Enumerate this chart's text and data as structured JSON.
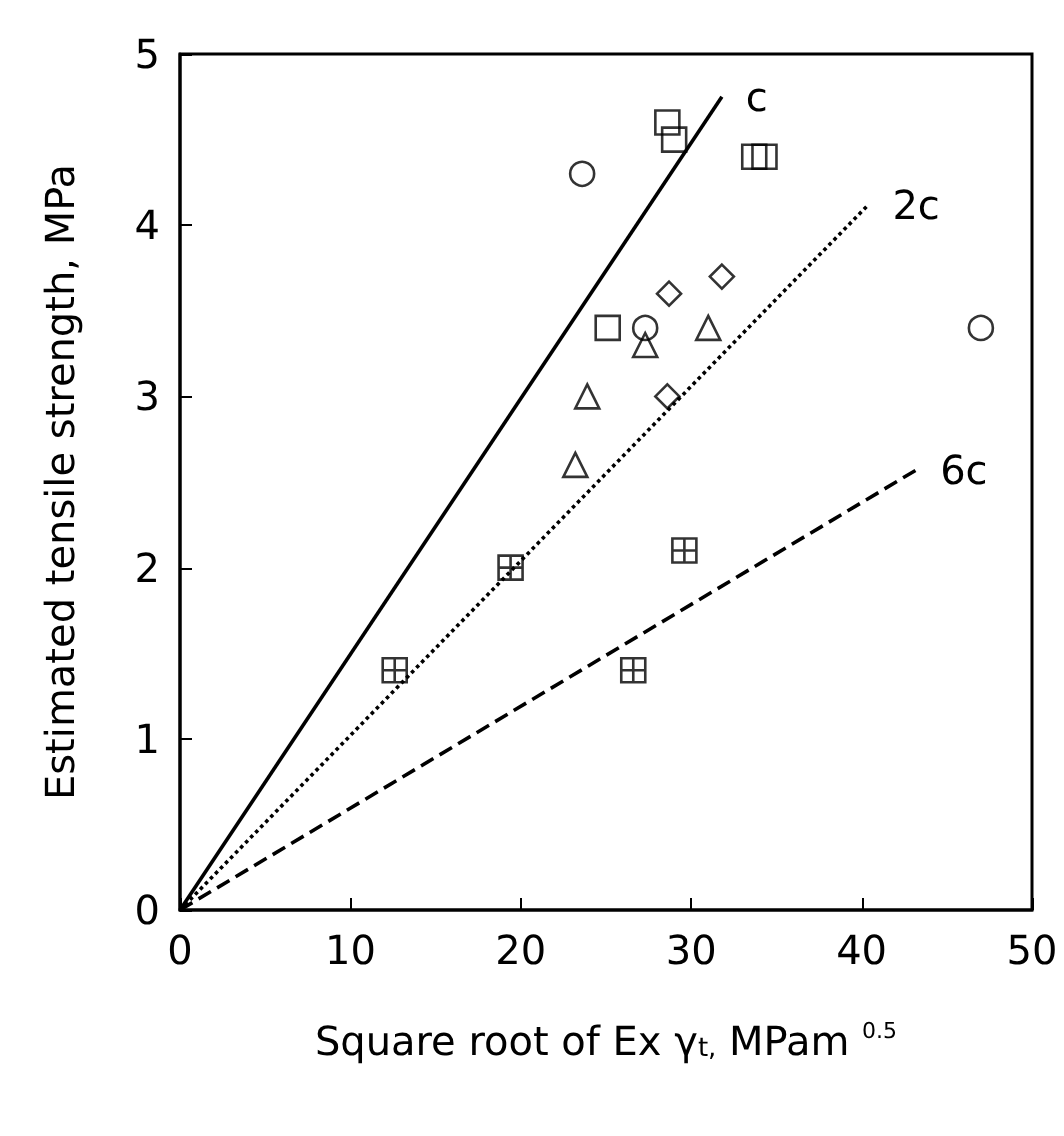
{
  "chart_data": {
    "type": "scatter",
    "xlabel": "Square root of Ex γ$_{t,}$ MPam $^{0.5}$",
    "ylabel": "Estimated tensile strength, MPa",
    "xlim": [
      0,
      50
    ],
    "xticks": [
      0,
      10,
      20,
      30,
      40,
      50
    ],
    "ylim": [
      0,
      5
    ],
    "yticks": [
      0,
      1,
      2,
      3,
      4,
      5
    ],
    "grid": false,
    "series": [
      {
        "marker": "circle",
        "color": "#000000",
        "x": [
          23.6,
          27.3,
          47
        ],
        "values": [
          4.3,
          3.4,
          3.4
        ]
      },
      {
        "marker": "square",
        "color": "#000000",
        "x": [
          28.6,
          29,
          33.7,
          34.3,
          25.1
        ],
        "values": [
          4.6,
          4.5,
          4.4,
          4.4,
          3.4
        ]
      },
      {
        "marker": "triangle",
        "color": "#000000",
        "x": [
          27.3,
          23.9,
          23.2,
          31
        ],
        "values": [
          3.3,
          3,
          2.6,
          3.4
        ]
      },
      {
        "marker": "diamond",
        "color": "#000000",
        "x": [
          28.7,
          31.8,
          28.6
        ],
        "values": [
          3.6,
          3.7,
          3
        ]
      },
      {
        "marker": "cross",
        "color": "#000000",
        "x": [
          12.6,
          19.4,
          29.6,
          26.6
        ],
        "values": [
          1.4,
          2,
          2.1,
          1.4
        ]
      },
      {
        "type": "line",
        "name": "c",
        "line_style": "solid",
        "color": "#000000",
        "x": [
          0,
          31.8
        ],
        "values": [
          0,
          4.75
        ]
      },
      {
        "type": "line",
        "name": "2c",
        "line_style": "dotted",
        "color": "#000000",
        "x": [
          0,
          40.4
        ],
        "values": [
          0,
          4.12
        ]
      },
      {
        "type": "line",
        "name": "6c",
        "line_style": "dashed",
        "color": "#000000",
        "x": [
          0,
          43.2
        ],
        "values": [
          0,
          2.57
        ]
      }
    ]
  }
}
